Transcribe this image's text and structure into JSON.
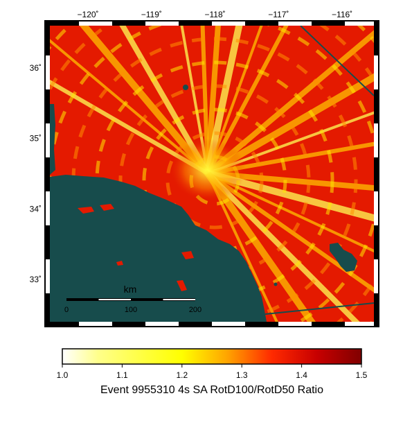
{
  "map": {
    "lon_ticks": [
      {
        "value": -120,
        "label": "−120˚"
      },
      {
        "value": -119,
        "label": "−119˚"
      },
      {
        "value": -118,
        "label": "−118˚"
      },
      {
        "value": -117,
        "label": "−117˚"
      },
      {
        "value": -116,
        "label": "−116˚"
      }
    ],
    "lat_ticks": [
      {
        "value": 36,
        "label": "36˚"
      },
      {
        "value": 35,
        "label": "35˚"
      },
      {
        "value": 34,
        "label": "34˚"
      },
      {
        "value": 33,
        "label": "33˚"
      }
    ],
    "lon_range": [
      -120.6,
      -115.5
    ],
    "lat_range": [
      32.4,
      36.6
    ],
    "ocean_color": "#174c4c",
    "high_color": "#e41a00",
    "low_color": "#ffff33"
  },
  "scale_bar": {
    "title": "km",
    "ticks": [
      "0",
      "100",
      "200"
    ]
  },
  "colorbar": {
    "title": "Event 9955310 4s SA RotD100/RotD50 Ratio",
    "ticks": [
      "1.0",
      "1.1",
      "1.2",
      "1.3",
      "1.4",
      "1.5"
    ],
    "range": [
      1.0,
      1.5
    ],
    "stops": [
      "#ffffff",
      "#ffff8a",
      "#ffff00",
      "#ffa500",
      "#ff2a00",
      "#c80000",
      "#800000"
    ]
  }
}
